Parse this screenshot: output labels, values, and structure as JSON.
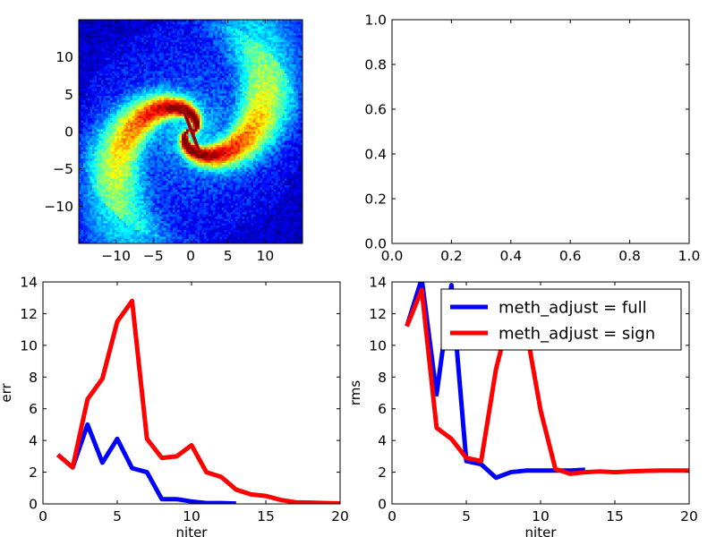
{
  "figure": {
    "background": "#ffffff",
    "colors": {
      "full": "#0000ff",
      "sign": "#ff0000",
      "frame": "#000000"
    }
  },
  "chart_data": [
    {
      "id": "spiral",
      "type": "heatmap",
      "description_colormap": "jet",
      "xlim": [
        -15,
        15
      ],
      "ylim": [
        -15,
        15
      ],
      "xticks": [
        -10,
        -5,
        0,
        5,
        10
      ],
      "yticks": [
        -10,
        -5,
        0,
        5,
        10
      ],
      "arms": 2,
      "overlay_path": [
        [
          -1.0,
          3.0
        ],
        [
          1.2,
          -2.8
        ]
      ]
    },
    {
      "id": "empty",
      "type": "line",
      "xlim": [
        0,
        1
      ],
      "ylim": [
        0,
        1
      ],
      "xticks": [
        "0.0",
        "0.2",
        "0.4",
        "0.6",
        "0.8",
        "1.0"
      ],
      "yticks": [
        "0.0",
        "0.2",
        "0.4",
        "0.6",
        "0.8",
        "1.0"
      ],
      "series": []
    },
    {
      "id": "err",
      "type": "line",
      "xlabel": "niter",
      "ylabel": "err",
      "xlim": [
        0,
        20
      ],
      "ylim": [
        0,
        14
      ],
      "xticks": [
        0,
        5,
        10,
        15,
        20
      ],
      "yticks": [
        0,
        2,
        4,
        6,
        8,
        10,
        12,
        14
      ],
      "series": [
        {
          "key": "full",
          "color": "#0000ff",
          "x": [
            1,
            2,
            3,
            4,
            5,
            6,
            7,
            8,
            9,
            10,
            11,
            12,
            13
          ],
          "y": [
            3.1,
            2.3,
            5.0,
            2.6,
            4.1,
            2.25,
            2.0,
            0.3,
            0.3,
            0.15,
            0.05,
            0.05,
            0.02
          ]
        },
        {
          "key": "sign",
          "color": "#ff0000",
          "x": [
            1,
            2,
            3,
            4,
            5,
            6,
            7,
            8,
            9,
            10,
            11,
            12,
            13,
            14,
            15,
            16,
            17,
            18,
            19,
            20
          ],
          "y": [
            3.1,
            2.3,
            6.6,
            7.9,
            11.5,
            12.8,
            4.1,
            2.9,
            3.0,
            3.7,
            2.0,
            1.7,
            0.9,
            0.6,
            0.5,
            0.25,
            0.1,
            0.08,
            0.05,
            0.03
          ]
        }
      ]
    },
    {
      "id": "rms",
      "type": "line",
      "xlabel": "niter",
      "ylabel": "rms",
      "xlim": [
        0,
        20
      ],
      "ylim": [
        0,
        14
      ],
      "xticks": [
        0,
        5,
        10,
        15,
        20
      ],
      "yticks": [
        0,
        2,
        4,
        6,
        8,
        10,
        12,
        14
      ],
      "legend": {
        "location": "upper-right",
        "entries": [
          "meth_adjust = full",
          "meth_adjust = sign"
        ]
      },
      "series": [
        {
          "key": "full",
          "name": "meth_adjust = full",
          "color": "#0000ff",
          "x": [
            1,
            2,
            3,
            4,
            5,
            6,
            7,
            8,
            9,
            10,
            11,
            12,
            13
          ],
          "y": [
            11.2,
            14.2,
            6.9,
            13.8,
            2.7,
            2.5,
            1.65,
            2.0,
            2.1,
            2.1,
            2.1,
            2.1,
            2.15
          ]
        },
        {
          "key": "sign",
          "name": "meth_adjust = sign",
          "color": "#ff0000",
          "x": [
            1,
            2,
            3,
            4,
            5,
            6,
            7,
            8,
            9,
            10,
            11,
            12,
            13,
            14,
            15,
            16,
            17,
            18,
            19,
            20
          ],
          "y": [
            11.2,
            13.5,
            4.8,
            4.1,
            2.9,
            2.7,
            8.5,
            12.2,
            11.2,
            5.9,
            2.2,
            1.9,
            2.0,
            2.05,
            2.0,
            2.05,
            2.08,
            2.1,
            2.1,
            2.1
          ]
        }
      ]
    }
  ]
}
